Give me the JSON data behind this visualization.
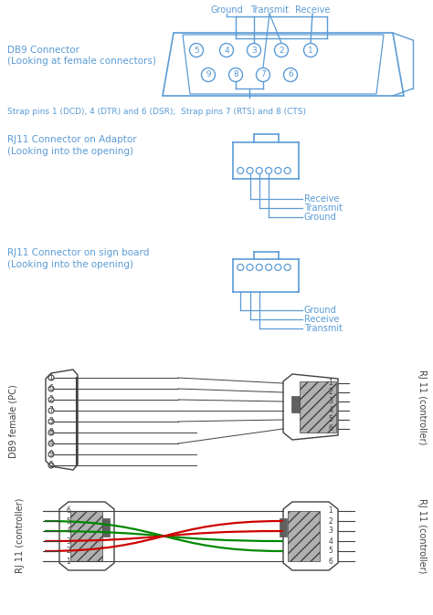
{
  "bg_color": "#ffffff",
  "lc": "#5b9bd5",
  "tc": "#5b9bd5",
  "dark": "#404040",
  "strap_text": "Strap pins 1 (DCD), 4 (DTR) and 6 (DSR);  Strap pins 7 (RTS) and 8 (CTS)",
  "db9_label1": "DB9 Connector",
  "db9_label2": "(Looking at female connectors)",
  "rj11_adaptor_label1": "RJ11 Connector on Adaptor",
  "rj11_adaptor_label2": "(Looking into the opening)",
  "rj11_sign_label1": "RJ11 Connector on sign board",
  "rj11_sign_label2": "(Looking into the opening)",
  "rj11_labels_adaptor": [
    "Receive",
    "Transmit",
    "Ground"
  ],
  "rj11_labels_sign": [
    "Ground",
    "Receive",
    "Transmit"
  ],
  "diagram3_left_label": "DB9 female (PC)",
  "diagram3_right_label": "RJ 11 (controller)",
  "diagram4_left_label": "RJ 11 (controller)",
  "diagram4_right_label": "RJ 11 (controller)",
  "green_color": "#008800",
  "red_color": "#cc0000",
  "gray_hatch": "#b0b0b0",
  "dark_block": "#606060"
}
